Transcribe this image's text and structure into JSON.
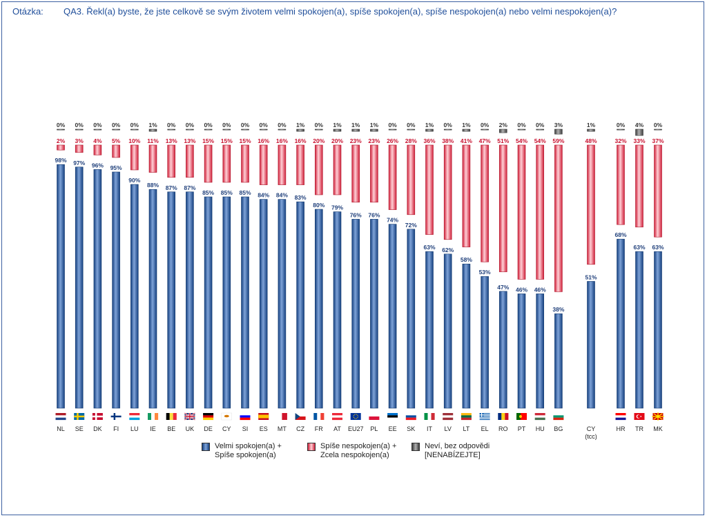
{
  "question": {
    "label": "Otázka:",
    "text": "QA3. Řekl(a) byste, že jste celkově  se svým životem velmi spokojen(a), spíše spokojen(a), spíše nespokojen(a) nebo velmi nespokojen(a)?"
  },
  "legend": {
    "satisfied": [
      "Velmi spokojen(a) +",
      "Spíše spokojen(a)"
    ],
    "dissatisfied": [
      "Spíše nespokojen(a) +",
      "Zcela nespokojen(a)"
    ],
    "dontknow": [
      "Neví, bez odpovědi",
      "[NENABÍZEJTE]"
    ]
  },
  "chart_data": {
    "type": "bar",
    "title": "QA3. Řekl(a) byste, že jste celkově  se svým životem velmi spokojen(a), spíše spokojen(a), spíše nespokojen(a) nebo velmi nespokojen(a)?",
    "ylim": [
      0,
      100
    ],
    "categories": [
      "NL",
      "SE",
      "DK",
      "FI",
      "LU",
      "IE",
      "BE",
      "UK",
      "DE",
      "CY",
      "SI",
      "ES",
      "MT",
      "CZ",
      "FR",
      "AT",
      "EU27",
      "PL",
      "EE",
      "SK",
      "IT",
      "LV",
      "LT",
      "EL",
      "RO",
      "PT",
      "HU",
      "BG",
      "CY (tcc)",
      "HR",
      "TR",
      "MK"
    ],
    "category_lines": [
      [
        "NL"
      ],
      [
        "SE"
      ],
      [
        "DK"
      ],
      [
        "FI"
      ],
      [
        "LU"
      ],
      [
        "IE"
      ],
      [
        "BE"
      ],
      [
        "UK"
      ],
      [
        "DE"
      ],
      [
        "CY"
      ],
      [
        "SI"
      ],
      [
        "ES"
      ],
      [
        "MT"
      ],
      [
        "CZ"
      ],
      [
        "FR"
      ],
      [
        "AT"
      ],
      [
        "EU27"
      ],
      [
        "PL"
      ],
      [
        "EE"
      ],
      [
        "SK"
      ],
      [
        "IT"
      ],
      [
        "LV"
      ],
      [
        "LT"
      ],
      [
        "EL"
      ],
      [
        "RO"
      ],
      [
        "PT"
      ],
      [
        "HU"
      ],
      [
        "BG"
      ],
      [
        "CY",
        "(tcc)"
      ],
      [
        "HR"
      ],
      [
        "TR"
      ],
      [
        "MK"
      ]
    ],
    "series": [
      {
        "name": "Velmi spokojen(a) + Spíše spokojen(a)",
        "color": "#1f4e9a",
        "values": [
          98,
          97,
          96,
          95,
          90,
          88,
          87,
          87,
          85,
          85,
          85,
          84,
          84,
          83,
          80,
          79,
          76,
          76,
          74,
          72,
          63,
          62,
          58,
          53,
          47,
          46,
          46,
          38,
          51,
          68,
          63,
          63
        ]
      },
      {
        "name": "Spíše nespokojen(a) + Zcela nespokojen(a)",
        "color": "#e8334a",
        "values": [
          2,
          3,
          4,
          5,
          10,
          11,
          13,
          13,
          15,
          15,
          15,
          16,
          16,
          16,
          20,
          20,
          23,
          23,
          26,
          28,
          36,
          38,
          41,
          47,
          51,
          54,
          54,
          59,
          48,
          32,
          33,
          37
        ]
      },
      {
        "name": "Neví, bez odpovědi [NENABÍZEJTE]",
        "color": "#555555",
        "values": [
          0,
          0,
          0,
          0,
          0,
          1,
          0,
          0,
          0,
          0,
          0,
          0,
          0,
          1,
          0,
          1,
          1,
          1,
          0,
          0,
          1,
          0,
          1,
          0,
          2,
          0,
          0,
          3,
          1,
          0,
          4,
          0
        ]
      }
    ]
  }
}
